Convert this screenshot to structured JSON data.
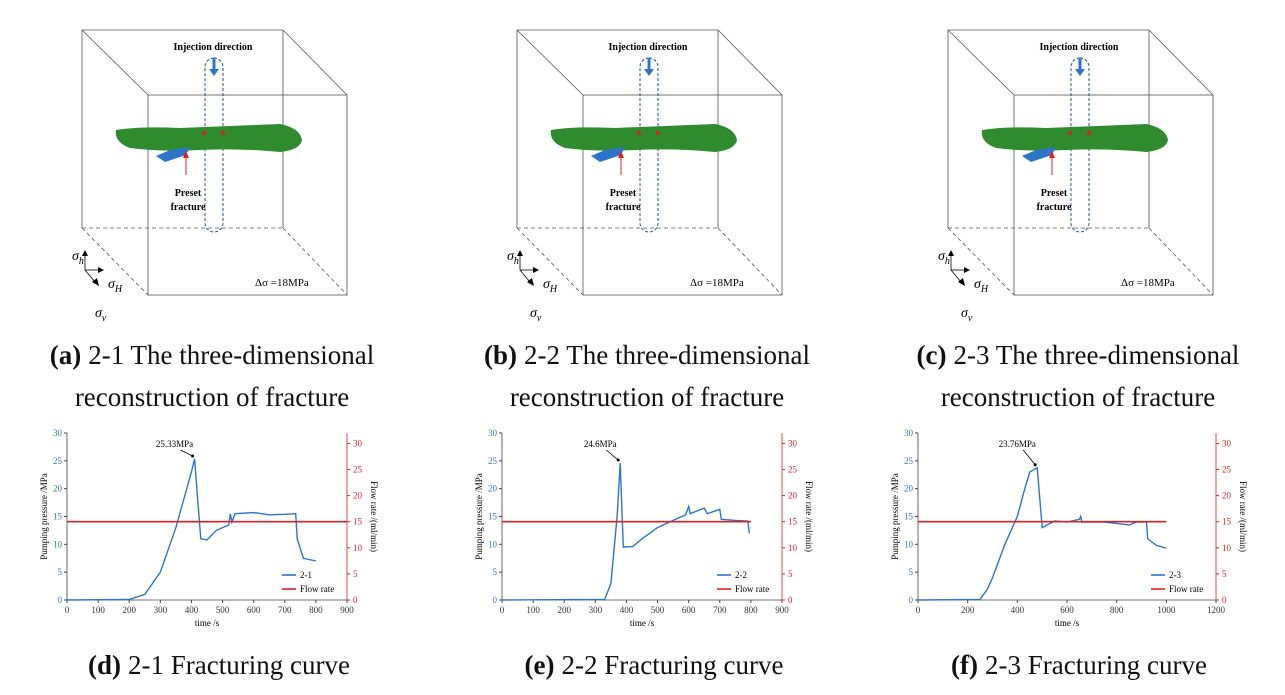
{
  "diagrams": [
    {
      "injection_label": "Injection direction",
      "preset_label": [
        "Preset",
        "fracture"
      ],
      "stress_labels": [
        {
          "base": "σ",
          "sub": "h"
        },
        {
          "base": "σ",
          "sub": "H"
        },
        {
          "base": "σ",
          "sub": "v"
        }
      ],
      "delta_label": "Δσ =18MPa",
      "caption": {
        "letter": "(a)",
        "lines": [
          "2-1 The three-dimensional",
          "reconstruction of fracture"
        ]
      }
    },
    {
      "injection_label": "Injection direction",
      "preset_label": [
        "Preset",
        "fracture"
      ],
      "stress_labels": [
        {
          "base": "σ",
          "sub": "h"
        },
        {
          "base": "σ",
          "sub": "H"
        },
        {
          "base": "σ",
          "sub": "v"
        }
      ],
      "delta_label": "Δσ =18MPa",
      "caption": {
        "letter": "(b)",
        "lines": [
          "2-2 The three-dimensional",
          "reconstruction of fracture"
        ]
      }
    },
    {
      "injection_label": "Injection direction",
      "preset_label": [
        "Preset",
        "fracture"
      ],
      "stress_labels": [
        {
          "base": "σ",
          "sub": "h"
        },
        {
          "base": "σ",
          "sub": "H"
        },
        {
          "base": "σ",
          "sub": "v"
        }
      ],
      "delta_label": "Δσ =18MPa",
      "caption": {
        "letter": "(c)",
        "lines": [
          "2-3 The three-dimensional",
          "reconstruction of fracture"
        ]
      }
    }
  ],
  "chart_data": [
    {
      "type": "line",
      "caption": {
        "letter": "(d)",
        "text": "2-1 Fracturing curve"
      },
      "x_label": "time /s",
      "y_label": "Pumping pressure /MPa",
      "y2_label": "Flow rate /(ml/min)",
      "annotation": {
        "text": "25.33MPa",
        "x": 410,
        "y": 25.33
      },
      "xlim": [
        0,
        900
      ],
      "xticks": [
        0,
        100,
        200,
        300,
        400,
        500,
        600,
        700,
        800,
        900
      ],
      "ylim": [
        0,
        30
      ],
      "yticks": [
        0,
        5,
        10,
        15,
        20,
        25,
        30
      ],
      "y2lim": [
        0,
        32
      ],
      "y2ticks": [
        0,
        5,
        10,
        15,
        20,
        25,
        30
      ],
      "legend": "lower right",
      "series": [
        {
          "name": "2-1",
          "color": "#2e75c9",
          "x": [
            0,
            200,
            250,
            300,
            350,
            400,
            410,
            420,
            430,
            450,
            480,
            500,
            520,
            525,
            530,
            540,
            600,
            650,
            700,
            735,
            740,
            760,
            800
          ],
          "values": [
            0,
            0.1,
            1,
            5,
            13,
            23,
            25.33,
            18,
            11,
            10.8,
            12.5,
            13,
            13.5,
            15.5,
            14,
            15.5,
            15.7,
            15.3,
            15.4,
            15.5,
            11,
            7.5,
            7
          ]
        },
        {
          "name": "Flow rate",
          "color": "#e02020",
          "axis": "y2",
          "x": [
            0,
            900
          ],
          "values": [
            15,
            15
          ]
        }
      ]
    },
    {
      "type": "line",
      "caption": {
        "letter": "(e)",
        "text": "2-2 Fracturing curve"
      },
      "x_label": "time /s",
      "y_label": "Pumping pressure /MPa",
      "y2_label": "Flow rate /(ml/min)",
      "annotation": {
        "text": "24.6MPa",
        "x": 380,
        "y": 24.6
      },
      "xlim": [
        0,
        900
      ],
      "xticks": [
        0,
        100,
        200,
        300,
        400,
        500,
        600,
        700,
        800,
        900
      ],
      "ylim": [
        0,
        30
      ],
      "yticks": [
        0,
        5,
        10,
        15,
        20,
        25,
        30
      ],
      "y2lim": [
        0,
        32
      ],
      "y2ticks": [
        0,
        5,
        10,
        15,
        20,
        25,
        30
      ],
      "legend": "lower right",
      "series": [
        {
          "name": "2-2",
          "color": "#2e75c9",
          "x": [
            0,
            330,
            350,
            370,
            380,
            390,
            420,
            450,
            500,
            550,
            590,
            600,
            605,
            650,
            660,
            700,
            705,
            750,
            790,
            795
          ],
          "values": [
            0,
            0.1,
            3,
            15,
            24.6,
            9.5,
            9.6,
            11,
            13,
            14.3,
            15.3,
            16.8,
            15.5,
            16.5,
            15.5,
            16.3,
            14.5,
            14.3,
            14.2,
            12
          ]
        },
        {
          "name": "Flow rate",
          "color": "#e02020",
          "axis": "y2",
          "x": [
            0,
            800
          ],
          "values": [
            15,
            15
          ]
        }
      ]
    },
    {
      "type": "line",
      "caption": {
        "letter": "(f)",
        "text": "2-3 Fracturing curve"
      },
      "x_label": "time /s",
      "y_label": "Pumping pressure /MPa",
      "y2_label": "Flow rate /(ml/min)",
      "annotation": {
        "text": "23.76MPa",
        "x": 480,
        "y": 23.76
      },
      "xlim": [
        0,
        1200
      ],
      "xticks": [
        0,
        200,
        400,
        600,
        800,
        1000,
        1200
      ],
      "ylim": [
        0,
        30
      ],
      "yticks": [
        0,
        5,
        10,
        15,
        20,
        25,
        30
      ],
      "y2lim": [
        0,
        32
      ],
      "y2ticks": [
        0,
        5,
        10,
        15,
        20,
        25,
        30
      ],
      "legend": "lower right",
      "series": [
        {
          "name": "2-3",
          "color": "#2e75c9",
          "x": [
            0,
            250,
            280,
            300,
            350,
            400,
            430,
            450,
            470,
            480,
            500,
            550,
            600,
            650,
            655,
            660,
            750,
            850,
            880,
            920,
            925,
            960,
            1000
          ],
          "values": [
            0,
            0.1,
            2,
            4,
            10,
            15,
            20,
            23,
            23.5,
            23.76,
            13,
            14.2,
            14,
            14.5,
            15,
            14,
            14,
            13.5,
            14,
            14,
            11,
            9.8,
            9.3
          ]
        },
        {
          "name": "Flow rate",
          "color": "#e02020",
          "axis": "y2",
          "x": [
            0,
            1000
          ],
          "values": [
            15,
            15
          ]
        }
      ]
    }
  ]
}
